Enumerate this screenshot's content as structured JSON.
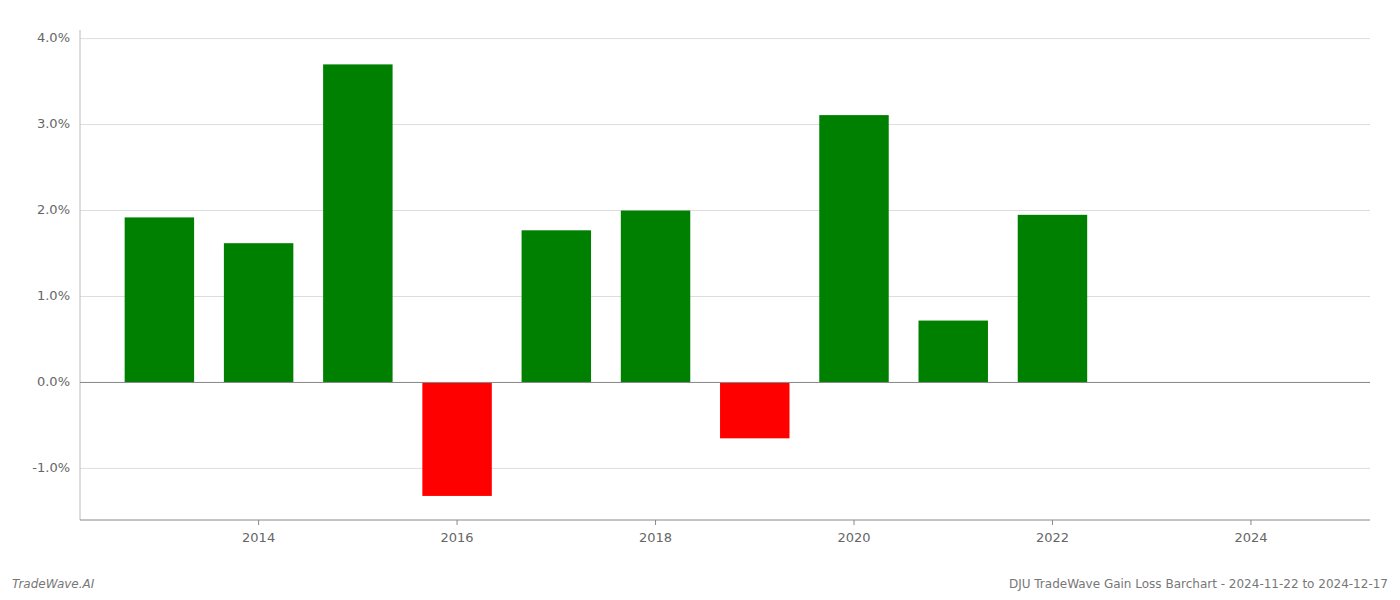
{
  "chart_data": {
    "type": "bar",
    "x": [
      2013,
      2014,
      2015,
      2016,
      2017,
      2018,
      2019,
      2020,
      2021,
      2022
    ],
    "values": [
      1.92,
      1.62,
      3.7,
      -1.32,
      1.77,
      2.0,
      -0.65,
      3.11,
      0.72,
      1.95
    ],
    "colors": [
      "#008000",
      "#008000",
      "#008000",
      "#ff0000",
      "#008000",
      "#008000",
      "#ff0000",
      "#008000",
      "#008000",
      "#008000"
    ],
    "xlim": [
      2012.2,
      2025.2
    ],
    "xticks": [
      2014,
      2016,
      2018,
      2020,
      2022,
      2024
    ],
    "ylim": [
      -1.6,
      4.1
    ],
    "yticks": [
      {
        "value": -1,
        "label": "-1.0%"
      },
      {
        "value": 0,
        "label": "0.0%"
      },
      {
        "value": 1,
        "label": "1.0%"
      },
      {
        "value": 2,
        "label": "2.0%"
      },
      {
        "value": 3,
        "label": "3.0%"
      },
      {
        "value": 4,
        "label": "4.0%"
      }
    ],
    "grid": true,
    "annotations": [
      "TradeWave.AI",
      "DJU TradeWave Gain Loss Barchart - 2024-11-22 to 2024-12-17"
    ]
  }
}
